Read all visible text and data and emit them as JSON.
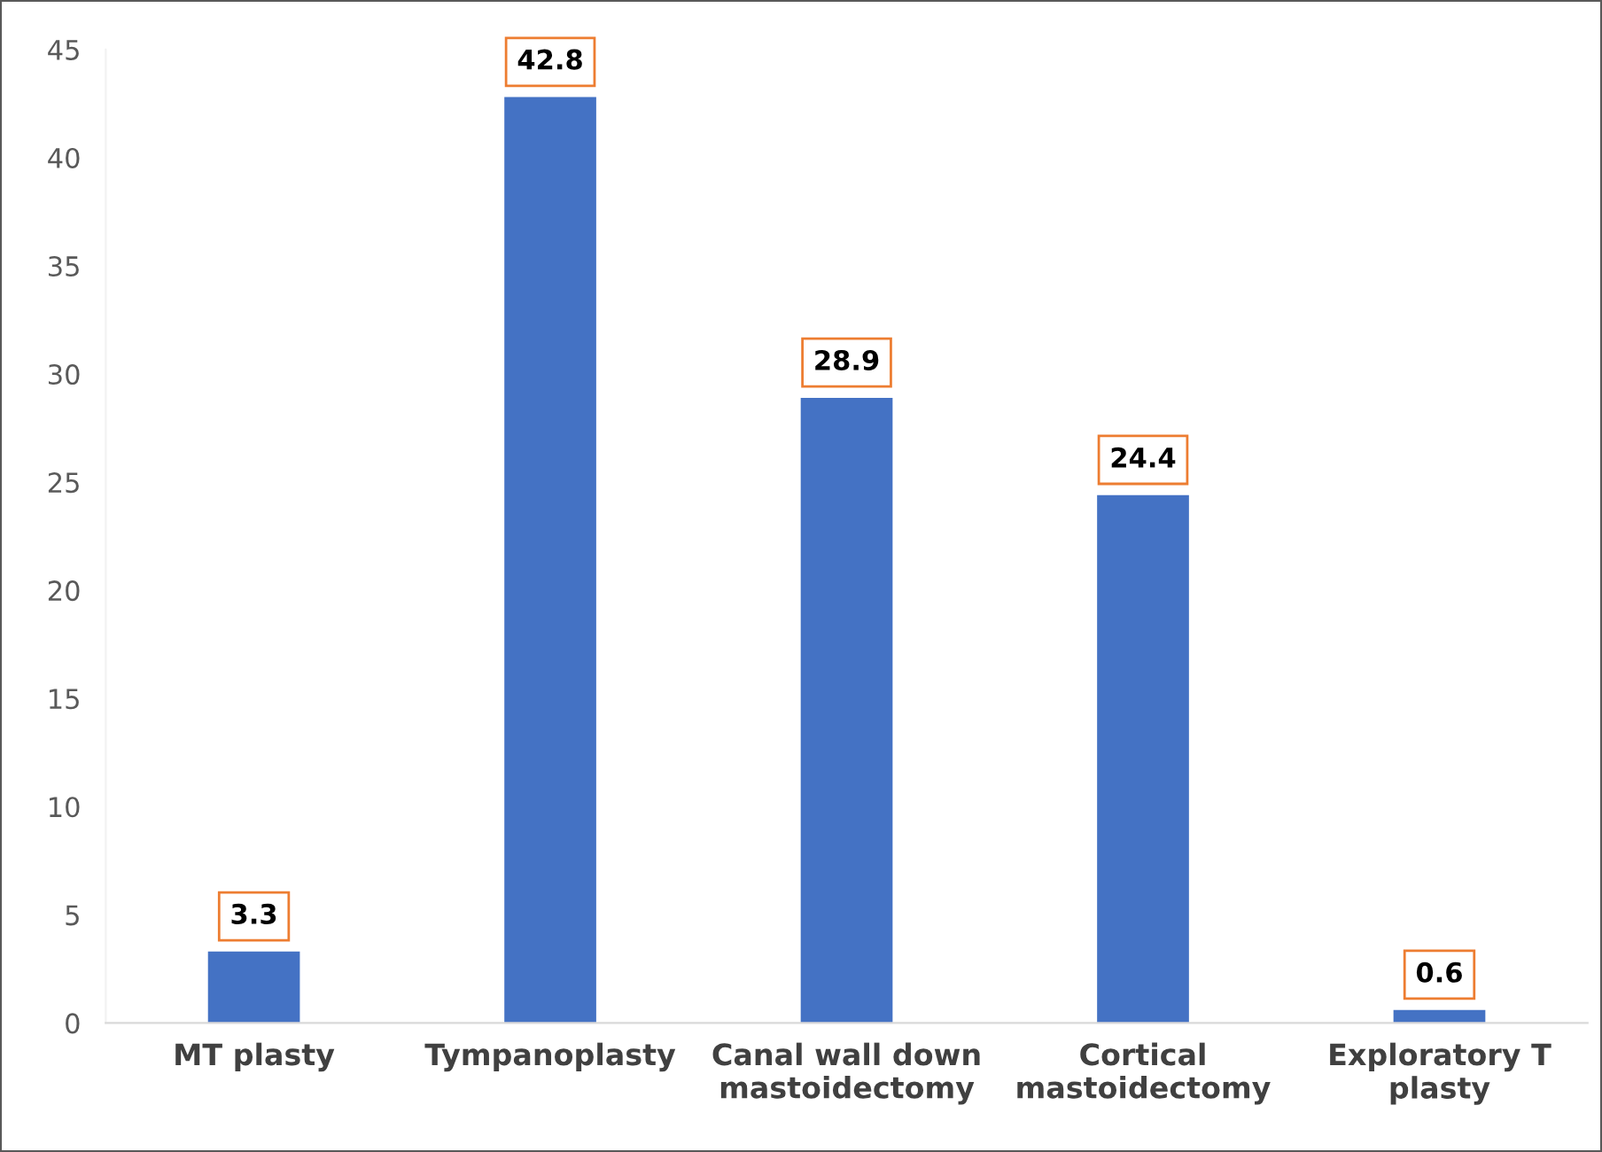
{
  "chart_data": {
    "type": "bar",
    "categories": [
      "MT plasty",
      "Tympanoplasty",
      "Canal wall down\nmastoidectomy",
      "Cortical\nmastoidectomy",
      "Exploratory T\nplasty"
    ],
    "values": [
      3.3,
      42.8,
      28.9,
      24.4,
      0.6
    ],
    "color": "#4472c4",
    "ylim": [
      0,
      45
    ],
    "yticks": [
      0,
      5,
      10,
      15,
      20,
      25,
      30,
      35,
      40,
      45
    ],
    "grid": false,
    "data_labels": true
  }
}
